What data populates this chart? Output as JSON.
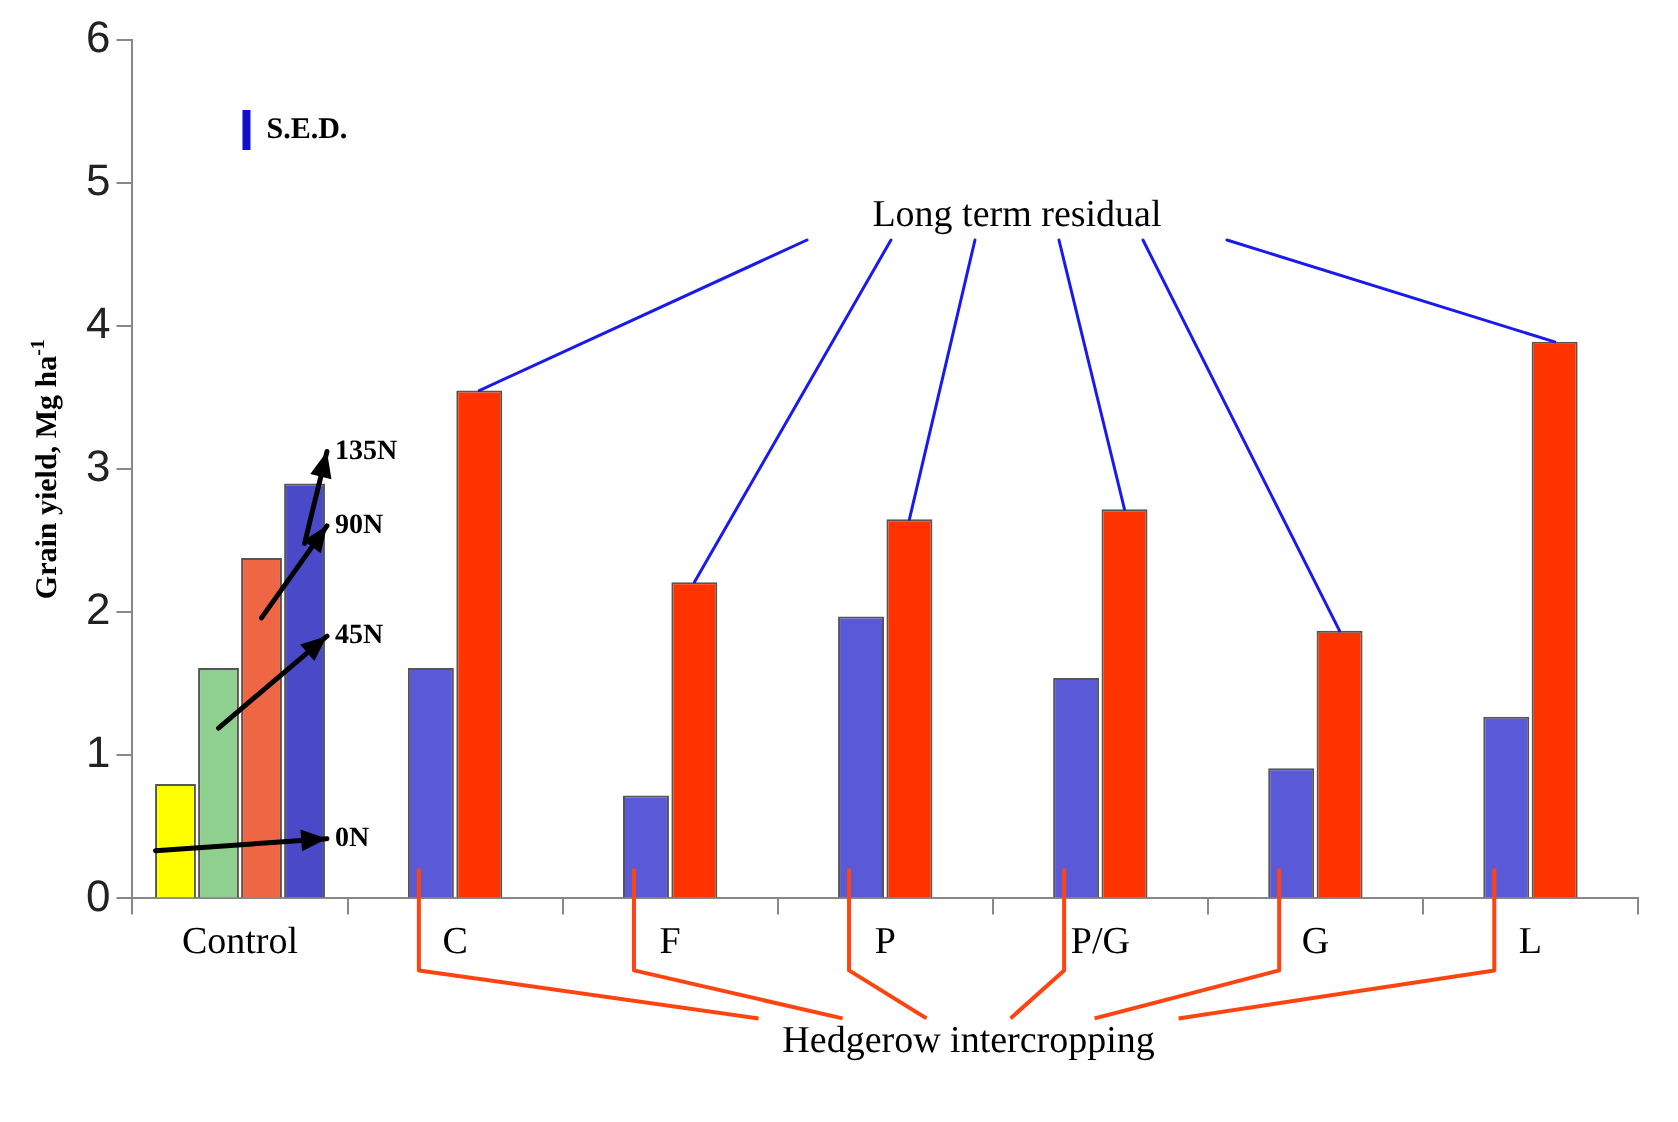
{
  "chart_data": {
    "type": "bar",
    "ylabel": "Grain yield, Mg ha$^{-1}$",
    "categories": [
      "Control",
      "C",
      "F",
      "P",
      "P/G",
      "G",
      "L"
    ],
    "series": [
      {
        "name": "0N",
        "color": "#ffff00",
        "values": [
          0.8,
          null,
          null,
          null,
          null,
          null,
          null
        ]
      },
      {
        "name": "45N",
        "color": "#8fcf8f",
        "values": [
          1.61,
          null,
          null,
          null,
          null,
          null,
          null
        ]
      },
      {
        "name": "90N",
        "color": "#ee6644",
        "values": [
          2.38,
          null,
          null,
          null,
          null,
          null,
          null
        ]
      },
      {
        "name": "135N",
        "color": "#4a4ac8",
        "values": [
          2.9,
          null,
          null,
          null,
          null,
          null,
          null
        ]
      },
      {
        "name": "Hedgerow intercropping",
        "color": "#5a5ad8",
        "values": [
          null,
          1.61,
          0.72,
          1.97,
          1.54,
          0.91,
          1.27
        ]
      },
      {
        "name": "Long term residual",
        "color": "#ff3300",
        "values": [
          null,
          3.55,
          2.21,
          2.65,
          2.72,
          1.87,
          3.89
        ]
      }
    ],
    "ylim": [
      0,
      6
    ],
    "yticks": [
      0,
      1,
      2,
      3,
      4,
      5,
      6
    ],
    "legend": false,
    "annotations": [
      "S.E.D."
    ]
  }
}
